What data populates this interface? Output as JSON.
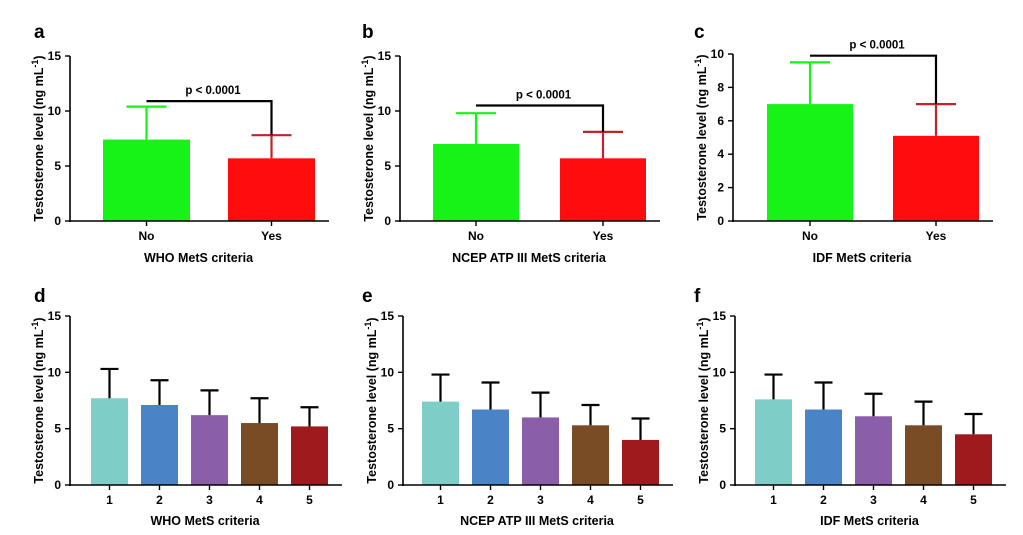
{
  "chart_data": [
    {
      "panel": "a",
      "type": "bar",
      "categories": [
        "No",
        "Yes"
      ],
      "values": [
        7.4,
        5.7
      ],
      "errors": [
        10.4,
        7.8
      ],
      "colors": [
        "#17f217",
        "#ff0d0d"
      ],
      "error_colors": [
        "#17f217",
        "#c0232b"
      ],
      "xlabel": "WHO MetS criteria",
      "ylabel": "Testosterone level (ng mL",
      "ylabel_sup": "-1",
      "ylabel_end": ")",
      "ylim": [
        0,
        15
      ],
      "yticks": [
        0,
        5,
        10,
        15
      ],
      "significance": {
        "label": "p < 0.0001",
        "y": 10.9
      }
    },
    {
      "panel": "b",
      "type": "bar",
      "categories": [
        "No",
        "Yes"
      ],
      "values": [
        7.0,
        5.7
      ],
      "errors": [
        9.8,
        8.1
      ],
      "colors": [
        "#17f217",
        "#ff0d0d"
      ],
      "error_colors": [
        "#17f217",
        "#c0232b"
      ],
      "xlabel": "NCEP ATP III MetS criteria",
      "ylabel": "Testosterone level (ng mL",
      "ylabel_sup": "-1",
      "ylabel_end": ")",
      "ylim": [
        0,
        15
      ],
      "yticks": [
        0,
        5,
        10,
        15
      ],
      "significance": {
        "label": "p < 0.0001",
        "y": 10.5
      }
    },
    {
      "panel": "c",
      "type": "bar",
      "categories": [
        "No",
        "Yes"
      ],
      "values": [
        7.0,
        5.1
      ],
      "errors": [
        9.5,
        7.0
      ],
      "colors": [
        "#17f217",
        "#ff0d0d"
      ],
      "error_colors": [
        "#17f217",
        "#c0232b"
      ],
      "xlabel": "IDF MetS criteria",
      "ylabel": "Testosterone level (ng mL",
      "ylabel_sup": "-1",
      "ylabel_end": ")",
      "ylim": [
        0,
        10
      ],
      "yticks": [
        0,
        2,
        4,
        6,
        8,
        10
      ],
      "significance": {
        "label": "p < 0.0001",
        "y": 9.9
      }
    },
    {
      "panel": "d",
      "type": "bar",
      "categories": [
        "1",
        "2",
        "3",
        "4",
        "5"
      ],
      "values": [
        7.7,
        7.1,
        6.2,
        5.5,
        5.2
      ],
      "errors": [
        10.3,
        9.3,
        8.4,
        7.7,
        6.9
      ],
      "colors": [
        "#7ecdc7",
        "#4a84c7",
        "#8a5ea8",
        "#7a4c26",
        "#9e1a1c"
      ],
      "error_colors": [
        "#000000",
        "#000000",
        "#000000",
        "#000000",
        "#000000"
      ],
      "xlabel": "WHO MetS criteria",
      "ylabel": "Testosterone level (ng mL",
      "ylabel_sup": "-1",
      "ylabel_end": ")",
      "ylim": [
        0,
        15
      ],
      "yticks": [
        0,
        5,
        10,
        15
      ]
    },
    {
      "panel": "e",
      "type": "bar",
      "categories": [
        "1",
        "2",
        "3",
        "4",
        "5"
      ],
      "values": [
        7.4,
        6.7,
        6.0,
        5.3,
        4.0
      ],
      "errors": [
        9.8,
        9.1,
        8.2,
        7.1,
        5.9
      ],
      "colors": [
        "#7ecdc7",
        "#4a84c7",
        "#8a5ea8",
        "#7a4c26",
        "#9e1a1c"
      ],
      "error_colors": [
        "#000000",
        "#000000",
        "#000000",
        "#000000",
        "#000000"
      ],
      "xlabel": "NCEP ATP III MetS criteria",
      "ylabel": "Testosterone level (ng mL",
      "ylabel_sup": "-1",
      "ylabel_end": ")",
      "ylim": [
        0,
        15
      ],
      "yticks": [
        0,
        5,
        10,
        15
      ]
    },
    {
      "panel": "f",
      "type": "bar",
      "categories": [
        "1",
        "2",
        "3",
        "4",
        "5"
      ],
      "values": [
        7.6,
        6.7,
        6.1,
        5.3,
        4.5
      ],
      "errors": [
        9.8,
        9.1,
        8.1,
        7.4,
        6.3
      ],
      "colors": [
        "#7ecdc7",
        "#4a84c7",
        "#8a5ea8",
        "#7a4c26",
        "#9e1a1c"
      ],
      "error_colors": [
        "#000000",
        "#000000",
        "#000000",
        "#000000",
        "#000000"
      ],
      "xlabel": "IDF MetS criteria",
      "ylabel": "Testosterone level (ng mL",
      "ylabel_sup": "-1",
      "ylabel_end": ")",
      "ylim": [
        0,
        15
      ],
      "yticks": [
        0,
        5,
        10,
        15
      ]
    }
  ]
}
